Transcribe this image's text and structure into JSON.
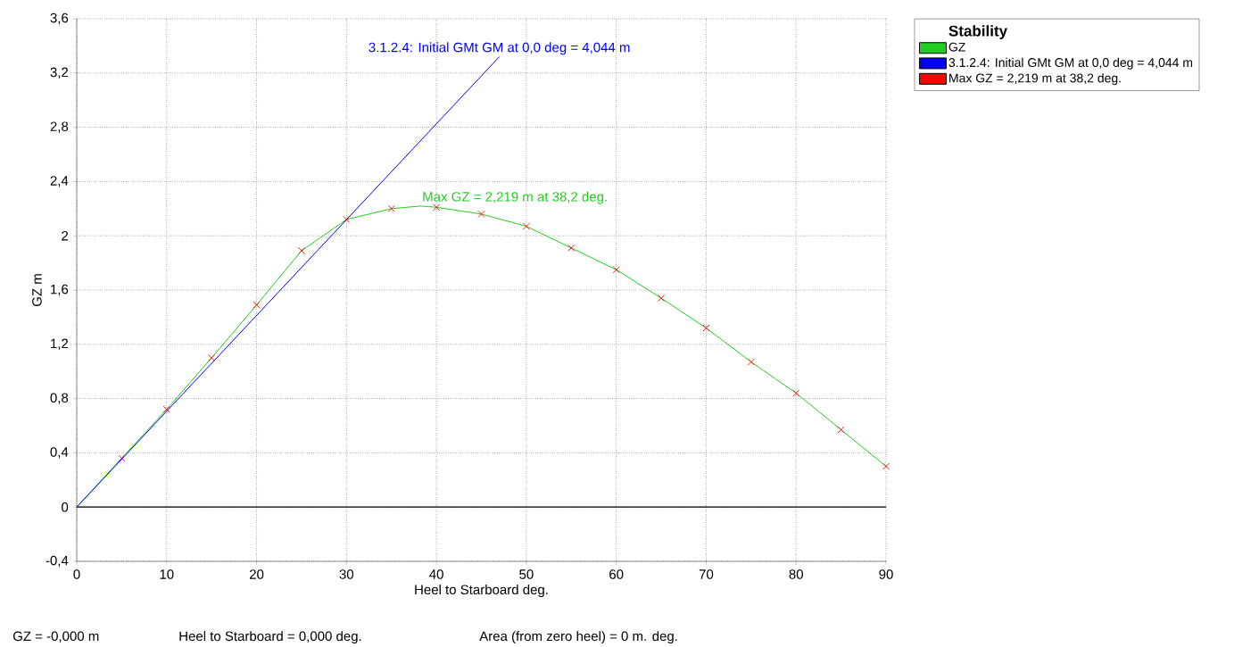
{
  "chart_data": {
    "type": "line",
    "xlabel": "Heel to Starboard   deg.",
    "ylabel": "GZ  m",
    "legend_title": "Stability",
    "series": [
      {
        "name": "GZ",
        "color": "#22cc22",
        "x": [
          0,
          5,
          10,
          15,
          20,
          25,
          30,
          35,
          38.2,
          40,
          45,
          50,
          55,
          60,
          65,
          70,
          75,
          80,
          85,
          90
        ],
        "values": [
          0,
          0.36,
          0.72,
          1.1,
          1.49,
          1.89,
          2.12,
          2.2,
          2.219,
          2.21,
          2.16,
          2.07,
          1.91,
          1.75,
          1.54,
          1.32,
          1.07,
          0.84,
          0.57,
          0.3
        ]
      },
      {
        "name": "3.1.2.4: Initial GMt GM at 0,0 deg = 4,044 m",
        "color": "#0000ff",
        "x": [
          0,
          47
        ],
        "values": [
          0,
          3.32
        ]
      },
      {
        "name": "Max GZ = 2,219 m at 38,2 deg.",
        "type": "scatter",
        "marker": "cross",
        "color": "#ff0000",
        "x": [
          5,
          10,
          15,
          20,
          25,
          30,
          35,
          40,
          45,
          50,
          55,
          60,
          65,
          70,
          75,
          80,
          85,
          90
        ],
        "values": [
          0.36,
          0.72,
          1.1,
          1.49,
          1.89,
          2.12,
          2.2,
          2.21,
          2.16,
          2.07,
          1.91,
          1.75,
          1.54,
          1.32,
          1.07,
          0.84,
          0.57,
          0.3
        ]
      }
    ],
    "xlim": [
      0,
      90
    ],
    "ylim": [
      -0.4,
      3.6
    ],
    "xticks": [
      0,
      10,
      20,
      30,
      40,
      50,
      60,
      70,
      80,
      90
    ],
    "yticks": [
      {
        "value": -0.4,
        "label": "-0,4"
      },
      0,
      {
        "value": 0.4,
        "label": "0,4"
      },
      {
        "value": 0.8,
        "label": "0,8"
      },
      {
        "value": 1.2,
        "label": "1,2"
      },
      {
        "value": 1.6,
        "label": "1,6"
      },
      2,
      {
        "value": 2.4,
        "label": "2,4"
      },
      {
        "value": 2.8,
        "label": "2,8"
      },
      {
        "value": 3.2,
        "label": "3,2"
      },
      {
        "value": 3.6,
        "label": "3,6"
      }
    ],
    "ref_lines": [
      {
        "axis": "y",
        "value": 0,
        "color": "#000000"
      }
    ],
    "grid": true,
    "legend": "top right",
    "annotations": [
      {
        "text": "3.1.2.4: Initial GMt GM at 0,0 deg = 4,044 m",
        "x": 47,
        "y": 3.32
      },
      {
        "text": "Max GZ = 2,219 m at 38,2 deg.",
        "x": 38.2,
        "y": 2.219
      },
      "GZ =  -0,000 m",
      "Heel to Starboard =  0,000  deg.",
      "Area (from zero heel) =        0 m. deg."
    ]
  }
}
